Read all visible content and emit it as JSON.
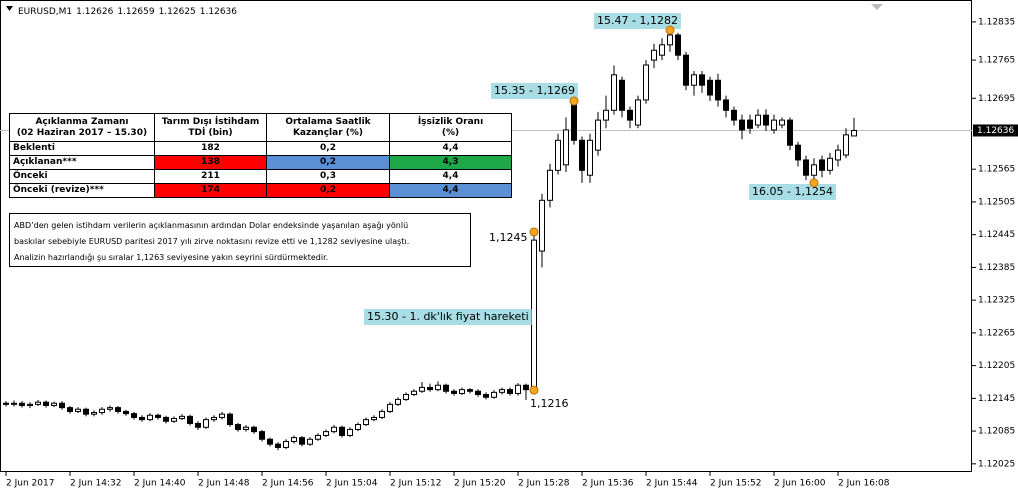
{
  "chart_data": {
    "type": "candlestick",
    "symbol": "EURUSD,M1",
    "header_values": [
      1.12626,
      1.12659,
      1.12625,
      1.12636
    ],
    "categories": [
      "2 Jun 2017",
      null,
      null,
      null,
      null,
      null,
      null,
      null,
      "2 Jun 14:32",
      null,
      null,
      null,
      null,
      null,
      null,
      null,
      "2 Jun 14:40",
      null,
      null,
      null,
      null,
      null,
      null,
      null,
      "2 Jun 14:48",
      null,
      null,
      null,
      null,
      null,
      null,
      null,
      "2 Jun 14:56",
      null,
      null,
      null,
      null,
      null,
      null,
      null,
      "2 Jun 15:04",
      null,
      null,
      null,
      null,
      null,
      null,
      null,
      "2 Jun 15:12",
      null,
      null,
      null,
      null,
      null,
      null,
      null,
      "2 Jun 15:20",
      null,
      null,
      null,
      null,
      null,
      null,
      null,
      "2 Jun 15:28",
      null,
      null,
      null,
      null,
      null,
      null,
      null,
      "2 Jun 15:36",
      null,
      null,
      null,
      null,
      null,
      null,
      null,
      "2 Jun 15:44",
      null,
      null,
      null,
      null,
      null,
      null,
      null,
      "2 Jun 15:52",
      null,
      null,
      null,
      null,
      null,
      null,
      null,
      "2 Jun 16:00",
      null,
      null,
      null,
      null,
      null,
      null,
      null,
      "2 Jun 16:08",
      null,
      null
    ],
    "ohlc": [
      [
        1.12136,
        1.1214,
        1.1213,
        1.12134
      ],
      [
        1.12134,
        1.12141,
        1.1213,
        1.12136
      ],
      [
        1.12136,
        1.1214,
        1.12128,
        1.12132
      ],
      [
        1.12132,
        1.12138,
        1.12127,
        1.12134
      ],
      [
        1.12134,
        1.12142,
        1.12131,
        1.12138
      ],
      [
        1.12138,
        1.12141,
        1.12128,
        1.12132
      ],
      [
        1.12132,
        1.12139,
        1.12129,
        1.12136
      ],
      [
        1.12136,
        1.1214,
        1.12124,
        1.12128
      ],
      [
        1.12128,
        1.12131,
        1.12117,
        1.12121
      ],
      [
        1.12121,
        1.12129,
        1.12118,
        1.12125
      ],
      [
        1.12125,
        1.12128,
        1.12112,
        1.12116
      ],
      [
        1.12116,
        1.12123,
        1.12112,
        1.12119
      ],
      [
        1.12119,
        1.12129,
        1.12115,
        1.12125
      ],
      [
        1.12125,
        1.12132,
        1.12121,
        1.12128
      ],
      [
        1.12128,
        1.12131,
        1.12117,
        1.12121
      ],
      [
        1.12121,
        1.12124,
        1.12113,
        1.12117
      ],
      [
        1.12117,
        1.1212,
        1.12106,
        1.1211
      ],
      [
        1.1211,
        1.12114,
        1.12102,
        1.12106
      ],
      [
        1.12106,
        1.12118,
        1.12103,
        1.12114
      ],
      [
        1.12114,
        1.12117,
        1.12106,
        1.1211
      ],
      [
        1.1211,
        1.12113,
        1.12099,
        1.12103
      ],
      [
        1.12103,
        1.12112,
        1.121,
        1.12108
      ],
      [
        1.12108,
        1.12116,
        1.12105,
        1.12112
      ],
      [
        1.12112,
        1.12115,
        1.12095,
        1.12099
      ],
      [
        1.12099,
        1.12103,
        1.12087,
        1.12092
      ],
      [
        1.12092,
        1.1211,
        1.12089,
        1.12106
      ],
      [
        1.12106,
        1.12114,
        1.12102,
        1.1211
      ],
      [
        1.1211,
        1.1212,
        1.12106,
        1.12116
      ],
      [
        1.12116,
        1.12119,
        1.12093,
        1.12097
      ],
      [
        1.12097,
        1.121,
        1.12084,
        1.12088
      ],
      [
        1.12088,
        1.12096,
        1.12084,
        1.12092
      ],
      [
        1.12092,
        1.12095,
        1.1208,
        1.12084
      ],
      [
        1.12084,
        1.12087,
        1.12066,
        1.1207
      ],
      [
        1.1207,
        1.12073,
        1.12057,
        1.12061
      ],
      [
        1.12061,
        1.12065,
        1.1205,
        1.12055
      ],
      [
        1.12055,
        1.1207,
        1.12052,
        1.12066
      ],
      [
        1.12066,
        1.12077,
        1.12062,
        1.12073
      ],
      [
        1.12073,
        1.12076,
        1.12057,
        1.12061
      ],
      [
        1.12061,
        1.12074,
        1.12058,
        1.1207
      ],
      [
        1.1207,
        1.12081,
        1.12067,
        1.12077
      ],
      [
        1.12077,
        1.12088,
        1.12074,
        1.12084
      ],
      [
        1.12084,
        1.12096,
        1.12081,
        1.12092
      ],
      [
        1.12092,
        1.12095,
        1.12073,
        1.12077
      ],
      [
        1.12077,
        1.12092,
        1.12074,
        1.12088
      ],
      [
        1.12088,
        1.12101,
        1.12085,
        1.12097
      ],
      [
        1.12097,
        1.1211,
        1.12094,
        1.12106
      ],
      [
        1.12106,
        1.12114,
        1.12103,
        1.1211
      ],
      [
        1.1211,
        1.12125,
        1.12107,
        1.12121
      ],
      [
        1.12121,
        1.12138,
        1.12118,
        1.12134
      ],
      [
        1.12134,
        1.12147,
        1.12131,
        1.12143
      ],
      [
        1.12143,
        1.12156,
        1.1214,
        1.12152
      ],
      [
        1.12152,
        1.12162,
        1.12149,
        1.12158
      ],
      [
        1.12158,
        1.12175,
        1.12155,
        1.12165
      ],
      [
        1.12165,
        1.12172,
        1.12157,
        1.12161
      ],
      [
        1.12161,
        1.12176,
        1.12158,
        1.12169
      ],
      [
        1.12169,
        1.12172,
        1.12154,
        1.12158
      ],
      [
        1.12158,
        1.12162,
        1.1215,
        1.12154
      ],
      [
        1.12154,
        1.12165,
        1.12151,
        1.12161
      ],
      [
        1.12161,
        1.12164,
        1.12154,
        1.12158
      ],
      [
        1.12158,
        1.12162,
        1.12148,
        1.12152
      ],
      [
        1.12152,
        1.12156,
        1.12143,
        1.12147
      ],
      [
        1.12147,
        1.1216,
        1.12144,
        1.12156
      ],
      [
        1.12156,
        1.12165,
        1.12152,
        1.12161
      ],
      [
        1.12161,
        1.12165,
        1.1215,
        1.12154
      ],
      [
        1.12154,
        1.12173,
        1.1215,
        1.12169
      ],
      [
        1.12169,
        1.12172,
        1.12142,
        1.12161
      ],
      [
        1.12161,
        1.1245,
        1.12158,
        1.12435
      ],
      [
        1.12415,
        1.1252,
        1.12385,
        1.12508
      ],
      [
        1.12508,
        1.12575,
        1.12495,
        1.12563
      ],
      [
        1.12563,
        1.1263,
        1.12555,
        1.12618
      ],
      [
        1.12573,
        1.1266,
        1.1256,
        1.12637
      ],
      [
        1.12683,
        1.1269,
        1.1261,
        1.12618
      ],
      [
        1.12618,
        1.12625,
        1.1254,
        1.12563
      ],
      [
        1.12554,
        1.1263,
        1.1254,
        1.12618
      ],
      [
        1.126,
        1.1267,
        1.1259,
        1.12655
      ],
      [
        1.12655,
        1.127,
        1.1264,
        1.12673
      ],
      [
        1.12673,
        1.12755,
        1.12665,
        1.12738
      ],
      [
        1.12728,
        1.12735,
        1.1266,
        1.12673
      ],
      [
        1.12673,
        1.1268,
        1.1264,
        1.12655
      ],
      [
        1.12646,
        1.127,
        1.1264,
        1.12692
      ],
      [
        1.12692,
        1.12765,
        1.12685,
        1.12756
      ],
      [
        1.12765,
        1.12795,
        1.1275,
        1.12783
      ],
      [
        1.12774,
        1.12805,
        1.12765,
        1.12793
      ],
      [
        1.12793,
        1.1282,
        1.1278,
        1.12811
      ],
      [
        1.12811,
        1.12815,
        1.12765,
        1.12774
      ],
      [
        1.12774,
        1.1278,
        1.1271,
        1.12719
      ],
      [
        1.12719,
        1.12745,
        1.127,
        1.12738
      ],
      [
        1.12738,
        1.12745,
        1.12705,
        1.12719
      ],
      [
        1.12728,
        1.12735,
        1.1269,
        1.12701
      ],
      [
        1.12728,
        1.1274,
        1.1268,
        1.12692
      ],
      [
        1.12692,
        1.127,
        1.1266,
        1.12673
      ],
      [
        1.12673,
        1.1268,
        1.12645,
        1.12655
      ],
      [
        1.12655,
        1.12665,
        1.1262,
        1.12637
      ],
      [
        1.12655,
        1.12665,
        1.1263,
        1.1264
      ],
      [
        1.12646,
        1.12675,
        1.1264,
        1.12664
      ],
      [
        1.12664,
        1.12675,
        1.12635,
        1.12646
      ],
      [
        1.12637,
        1.12665,
        1.1263,
        1.12655
      ],
      [
        1.12646,
        1.1266,
        1.1264,
        1.12655
      ],
      [
        1.12655,
        1.1266,
        1.126,
        1.12609
      ],
      [
        1.12609,
        1.12615,
        1.1257,
        1.12582
      ],
      [
        1.12582,
        1.1259,
        1.12545,
        1.12554
      ],
      [
        1.12554,
        1.12585,
        1.1254,
        1.12573
      ],
      [
        1.12582,
        1.1259,
        1.1255,
        1.12563
      ],
      [
        1.12563,
        1.12595,
        1.12555,
        1.12585
      ],
      [
        1.12582,
        1.1261,
        1.1257,
        1.126
      ],
      [
        1.12591,
        1.1264,
        1.12585,
        1.12628
      ],
      [
        1.12626,
        1.12659,
        1.12625,
        1.12636
      ]
    ],
    "bull_color": "#ffffff",
    "bear_color": "#000000",
    "ylim": [
      1.1201,
      1.12866
    ],
    "yticks": [
      1.12835,
      1.12765,
      1.12695,
      1.12565,
      1.12505,
      1.12445,
      1.12385,
      1.12325,
      1.12265,
      1.12205,
      1.12145,
      1.12085,
      1.12025
    ],
    "current_price": 1.12636,
    "annotations": [
      {
        "text": "15.47 - 1,1282",
        "value": 1.1282
      },
      {
        "text": "15.35 - 1,1269",
        "value": 1.1269
      },
      {
        "text": "16.05 - 1,1254",
        "value": 1.1254
      },
      {
        "text": "1,1245",
        "value": 1.1245
      },
      {
        "text": "1,1216",
        "value": 1.1216
      },
      {
        "text": "15.30 - 1. dk'lık fiyat hareketi"
      }
    ],
    "annotation_color": "#a8dde6",
    "marker_color": "#f5a623"
  },
  "table": {
    "header": [
      [
        "Açıklanma Zamanı",
        "(02 Haziran 2017 – 15.30)"
      ],
      [
        "Tarım Dışı İstihdam",
        "TDİ (bin)"
      ],
      [
        "Ortalama Saatlik",
        "Kazançlar (%)"
      ],
      [
        "İşsizlik Oranı",
        "(%)"
      ]
    ],
    "rows": [
      [
        "Beklenti",
        "182",
        "0,2",
        "4,4"
      ],
      [
        "Açıklanan***",
        "138",
        "0,2",
        "4,3"
      ],
      [
        "Önceki",
        "211",
        "0,3",
        "4,4"
      ],
      [
        "Önceki (revize)***",
        "174",
        "0,2",
        "4,4"
      ]
    ],
    "cell_colors": [
      [
        "#ffffff",
        "#ffffff",
        "#ffffff",
        "#ffffff"
      ],
      [
        "#ffffff",
        "#ff0000",
        "#5b8fd6",
        "#1fa847"
      ],
      [
        "#ffffff",
        "#ffffff",
        "#ffffff",
        "#ffffff"
      ],
      [
        "#ffffff",
        "#ff0000",
        "#ff0000",
        "#5b8fd6"
      ]
    ]
  },
  "note": [
    "ABD’den gelen istihdam verilerin açıklanmasının ardından Dolar endeksinde yaşanılan aşağı yönlü",
    "baskılar sebebiyle EURUSD paritesi 2017 yılı zirve noktasını revize etti ve 1,1282 seviyesine ulaştı.",
    "Analizin hazırlandığı şu sıralar 1,1263 seviyesine yakın seyrini sürdürmektedir."
  ]
}
